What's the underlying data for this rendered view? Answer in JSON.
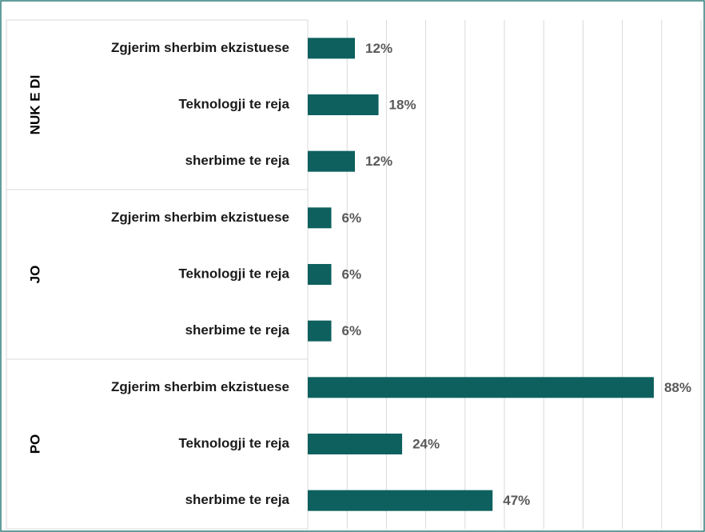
{
  "chart_data": {
    "type": "bar",
    "orientation": "horizontal",
    "color": "#0d605e",
    "xlim": [
      0,
      100
    ],
    "xticks": [
      0,
      10,
      20,
      30,
      40,
      50,
      60,
      70,
      80,
      90,
      100
    ],
    "grid": true,
    "groups": [
      {
        "name": "NUK E DI",
        "categories": [
          "Zgjerim sherbim ekzistuese",
          "Teknologji te reja",
          "sherbime te reja"
        ],
        "values": [
          12,
          18,
          12
        ],
        "value_labels": [
          "12%",
          "18%",
          "12%"
        ]
      },
      {
        "name": "JO",
        "categories": [
          "Zgjerim sherbim ekzistuese",
          "Teknologji te reja",
          "sherbime te reja"
        ],
        "values": [
          6,
          6,
          6
        ],
        "value_labels": [
          "6%",
          "6%",
          "6%"
        ]
      },
      {
        "name": "PO",
        "categories": [
          "Zgjerim sherbim ekzistuese",
          "Teknologji te reja",
          "sherbime te reja"
        ],
        "values": [
          88,
          24,
          47
        ],
        "value_labels": [
          "88%",
          "24%",
          "47%"
        ]
      }
    ]
  }
}
